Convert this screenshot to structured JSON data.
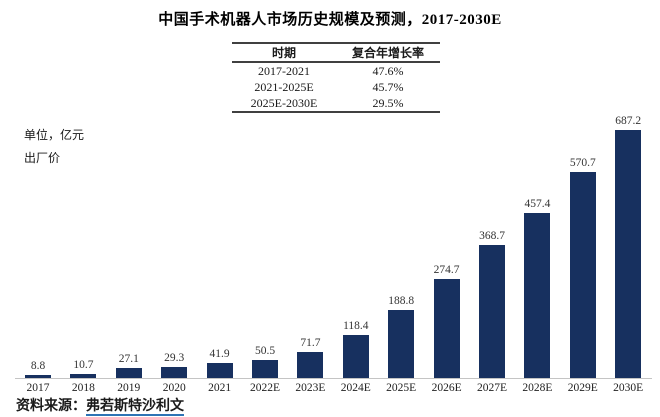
{
  "title": "中国手术机器人市场历史规模及预测，2017-2030E",
  "unit_label": "单位，亿元",
  "price_basis_label": "出厂价",
  "cagr_table": {
    "headers": [
      "时期",
      "复合年增长率"
    ],
    "rows": [
      [
        "2017-2021",
        "47.6%"
      ],
      [
        "2021-2025E",
        "45.7%"
      ],
      [
        "2025E-2030E",
        "29.5%"
      ]
    ]
  },
  "source": {
    "prefix": "资料来源：",
    "name": "弗若斯特沙利文"
  },
  "colors": {
    "bar": "#17305f",
    "axis": "#c4c4c4",
    "link_underline": "#2e74b5",
    "text": "#1a1a1a"
  },
  "chart_data": {
    "type": "bar",
    "categories": [
      "2017",
      "2018",
      "2019",
      "2020",
      "2021",
      "2022E",
      "2023E",
      "2024E",
      "2025E",
      "2026E",
      "2027E",
      "2028E",
      "2029E",
      "2030E"
    ],
    "values": [
      8.8,
      10.7,
      27.1,
      29.3,
      41.9,
      50.5,
      71.7,
      118.4,
      188.8,
      274.7,
      368.7,
      457.4,
      570.7,
      687.2
    ],
    "title": "中国手术机器人市场历史规模及预测，2017-2030E",
    "xlabel": "",
    "ylabel": "亿元（出厂价）",
    "ylim": [
      0,
      700
    ],
    "grid": false,
    "legend": null,
    "bar_value_labels": true
  }
}
